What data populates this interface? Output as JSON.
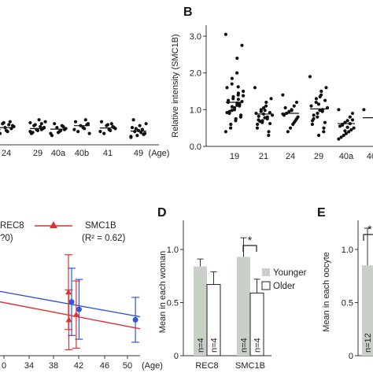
{
  "chart_data": [
    {
      "panel": "",
      "type": "scatter",
      "categories": [
        "24",
        "29",
        "40a",
        "40b",
        "41",
        "49"
      ],
      "xlabel": "(Age)",
      "tick_labels_y": [],
      "means": [
        1.0,
        0.95,
        0.92,
        1.1,
        0.98,
        0.82
      ],
      "points": [
        [
          0.9,
          1.1,
          1.3,
          0.8,
          1.0,
          1.2,
          0.7,
          1.05,
          0.95,
          1.15,
          0.85,
          1.25
        ],
        [
          0.8,
          1.0,
          1.2,
          1.4,
          0.9,
          1.1,
          0.7,
          1.3,
          0.95,
          1.05,
          0.85,
          1.15,
          0.75,
          1.25,
          1.0,
          0.9
        ],
        [
          0.7,
          0.9,
          1.1,
          0.8,
          1.0,
          1.2,
          0.6,
          0.95,
          1.05,
          0.85,
          0.75
        ],
        [
          0.9,
          1.2,
          1.4,
          1.0,
          1.1,
          0.8,
          1.3,
          0.7,
          1.15,
          0.95
        ],
        [
          0.8,
          1.0,
          1.2,
          0.9,
          1.1,
          0.7,
          1.3,
          0.95,
          1.05,
          0.85,
          1.15
        ],
        [
          0.5,
          0.7,
          0.9,
          1.1,
          0.6,
          0.8,
          1.0,
          1.2,
          0.65,
          0.75,
          0.85,
          0.95,
          1.4,
          0.55,
          0.7,
          0.9
        ]
      ]
    },
    {
      "panel": "B",
      "type": "scatter",
      "categories": [
        "19",
        "21",
        "24",
        "29",
        "40a",
        "40"
      ],
      "ylabel": "Relative intensity (SMC1B)",
      "yticks": [
        "0.0",
        "1.0",
        "2.0",
        "3.0"
      ],
      "ylim": [
        0,
        3.3
      ],
      "means": [
        1.2,
        0.88,
        0.9,
        1.02,
        0.62,
        0.78
      ],
      "points": [
        [
          3.05,
          2.75,
          2.4,
          2.0,
          1.85,
          1.7,
          1.6,
          1.5,
          1.45,
          1.4,
          1.35,
          1.3,
          1.25,
          1.2,
          1.15,
          1.1,
          1.05,
          1.0,
          0.95,
          0.9,
          0.85,
          0.8,
          0.75,
          0.7,
          0.6,
          0.5,
          0.4,
          1.22,
          1.18,
          1.12,
          1.08,
          0.98,
          0.92,
          1.38,
          1.28,
          1.62
        ],
        [
          1.6,
          1.3,
          1.2,
          1.1,
          1.0,
          0.95,
          0.9,
          0.85,
          0.8,
          0.75,
          0.7,
          0.65,
          0.6,
          0.5,
          0.4,
          0.3,
          1.05,
          0.88,
          0.82,
          0.72,
          0.62,
          0.92,
          0.98,
          0.78,
          0.68
        ],
        [
          1.4,
          1.2,
          1.1,
          1.0,
          0.95,
          0.9,
          0.85,
          0.8,
          0.7,
          0.6,
          0.5,
          0.4,
          1.05,
          0.88,
          0.75,
          0.65,
          0.98
        ],
        [
          1.9,
          1.6,
          1.5,
          1.4,
          1.3,
          1.2,
          1.1,
          1.05,
          1.0,
          0.95,
          0.9,
          0.8,
          0.7,
          0.6,
          0.5,
          0.4,
          0.3,
          1.15,
          0.85,
          0.75,
          1.25,
          0.65,
          1.35,
          0.98
        ],
        [
          1.0,
          0.9,
          0.8,
          0.7,
          0.65,
          0.6,
          0.55,
          0.5,
          0.45,
          0.4,
          0.35,
          0.3,
          0.25,
          0.2,
          0.72,
          0.62,
          0.52,
          0.42,
          0.58
        ],
        [
          1.0,
          0.8
        ]
      ]
    },
    {
      "panel": "",
      "type": "line",
      "legend": [
        {
          "name": "REC8",
          "r2": "?0)"
        },
        {
          "name": "SMC1B",
          "r2": "(R² = 0.62)"
        }
      ],
      "xticks": [
        "0",
        "34",
        "38",
        "42",
        "46",
        "50"
      ],
      "xlabel": "(Age)",
      "xlim": [
        30,
        50
      ],
      "ylim": [
        0,
        1.6
      ],
      "series": [
        {
          "name": "REC8",
          "color": "#3355dd",
          "marker": "circle",
          "x": [
            40,
            41,
            49
          ],
          "y": [
            0.72,
            0.62,
            0.48
          ],
          "err": [
            0.45,
            0.4,
            0.3
          ],
          "fit": [
            [
              30,
              0.86
            ],
            [
              50,
              0.52
            ]
          ]
        },
        {
          "name": "SMC1B",
          "color": "#dd3333",
          "marker": "triangle",
          "x": [
            40,
            40,
            41
          ],
          "y": [
            0.85,
            0.48,
            0.55
          ],
          "err": [
            0.5,
            0.4,
            0.45
          ],
          "fit": [
            [
              30,
              0.72
            ],
            [
              50,
              0.36
            ]
          ]
        }
      ]
    },
    {
      "panel": "D",
      "type": "bar",
      "ylabel": "Mean in each woman",
      "yticks": [
        "0",
        "0.5",
        "1.0"
      ],
      "ylim": [
        0,
        1.2
      ],
      "categories": [
        "REC8",
        "SMC1B"
      ],
      "legend": [
        "Younger",
        "Older"
      ],
      "series": [
        {
          "name": "Younger",
          "color": "#c8d0c8",
          "values": [
            0.84,
            0.93
          ],
          "err": [
            0.07,
            0.18
          ],
          "labels": [
            "n=4",
            "n=4"
          ]
        },
        {
          "name": "Older",
          "color": "#ffffff",
          "values": [
            0.67,
            0.59
          ],
          "err": [
            0.12,
            0.13
          ],
          "labels": [
            "n=4",
            "n=4"
          ]
        }
      ],
      "significance": "*"
    },
    {
      "panel": "E",
      "type": "bar",
      "ylabel": "Mean in each oocyte",
      "yticks": [
        "0",
        "0.5",
        "1.0"
      ],
      "ylim": [
        0,
        1.2
      ],
      "series": [
        {
          "name": "",
          "color": "#c8d0c8",
          "values": [
            0.85
          ],
          "err": [
            0.35
          ],
          "labels": [
            "n=12"
          ]
        }
      ],
      "significance": "*"
    }
  ]
}
